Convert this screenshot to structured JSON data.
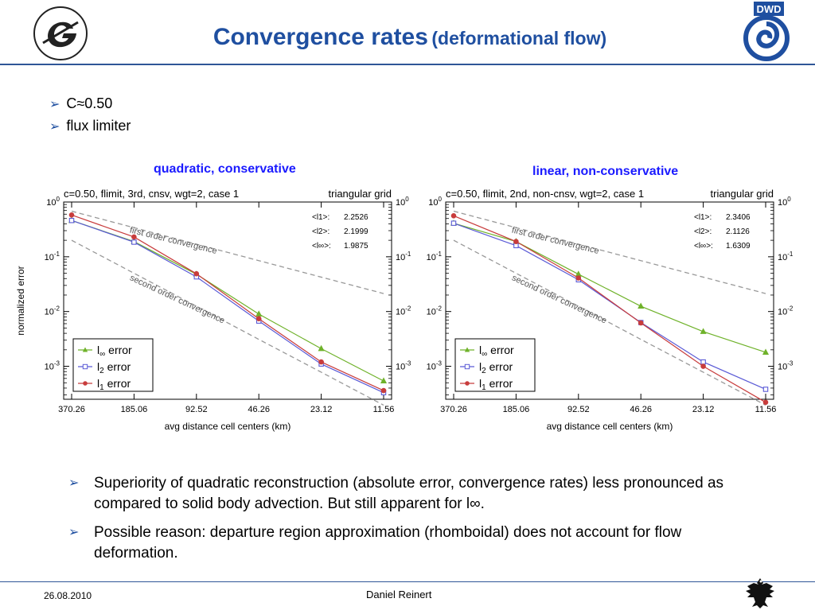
{
  "slide": {
    "title_main": "Convergence rates",
    "title_sub": "(deformational flow)",
    "bullets_top": [
      "C≈0.50",
      "flux limiter"
    ],
    "bullets_bottom": [
      "Superiority of quadratic reconstruction (absolute error, convergence rates) less pronounced as compared to solid body advection. But still apparent for l∞.",
      "Possible reason: departure region approximation (rhomboidal) does not account for flow deformation."
    ],
    "footer_date": "26.08.2010",
    "footer_author": "Daniel Reinert",
    "logo_right_text": "DWD"
  },
  "chart_data": [
    {
      "type": "line",
      "caption": "quadratic, conservative",
      "title_left": "c=0.50, flimit, 3rd, cnsv, wgt=2, case 1",
      "title_right": "triangular grid",
      "xlabel": "avg distance cell centers (km)",
      "ylabel": "normalized error",
      "x": [
        370.26,
        185.06,
        92.52,
        46.26,
        23.12,
        11.56
      ],
      "x_tick_labels": [
        "370.26",
        "185.06",
        "92.52",
        "46.26",
        "23.12",
        "11.56"
      ],
      "y_scale": "log",
      "ylim": [
        0.00025,
        1.0
      ],
      "y_tick_labels": [
        "10^0",
        "10^-1",
        "10^-2",
        "10^-3"
      ],
      "series": [
        {
          "name": "l∞ error",
          "marker": "triangle",
          "color": "#6fb22a",
          "values": [
            0.46,
            0.19,
            0.048,
            0.009,
            0.0021,
            0.00054
          ]
        },
        {
          "name": "l2 error",
          "marker": "square",
          "color": "#5a5ad6",
          "values": [
            0.46,
            0.185,
            0.043,
            0.0067,
            0.0011,
            0.00033
          ]
        },
        {
          "name": "l1 error",
          "marker": "circle",
          "color": "#c83c3c",
          "values": [
            0.58,
            0.23,
            0.049,
            0.0074,
            0.0012,
            0.00036
          ]
        }
      ],
      "reference_lines": [
        {
          "name": "first order convergence",
          "values": [
            0.68,
            0.34,
            0.17,
            0.085,
            0.0425,
            0.0213
          ]
        },
        {
          "name": "second order convergence",
          "values": [
            0.2,
            0.05,
            0.0125,
            0.0031,
            0.00078,
            0.000195
          ]
        }
      ],
      "rates": [
        {
          "label": "<l1>:",
          "value": "2.2526"
        },
        {
          "label": "<l2>:",
          "value": "2.1999"
        },
        {
          "label": "<l∞>:",
          "value": "1.9875"
        }
      ],
      "legend_position": "bottom-left",
      "grid": false
    },
    {
      "type": "line",
      "caption": "linear, non-conservative",
      "title_left": "c=0.50, flimit, 2nd, non-cnsv, wgt=2, case 1",
      "title_right": "triangular grid",
      "xlabel": "avg distance cell centers (km)",
      "ylabel": "",
      "x": [
        370.26,
        185.06,
        92.52,
        46.26,
        23.12,
        11.56
      ],
      "x_tick_labels": [
        "370.26",
        "185.06",
        "92.52",
        "46.26",
        "23.12",
        "11.56"
      ],
      "y_scale": "log",
      "ylim": [
        0.00025,
        1.0
      ],
      "y_tick_labels": [
        "10^0",
        "10^-1",
        "10^-2",
        "10^-3"
      ],
      "series": [
        {
          "name": "l∞ error",
          "marker": "triangle",
          "color": "#6fb22a",
          "values": [
            0.41,
            0.19,
            0.048,
            0.0125,
            0.0043,
            0.0018
          ]
        },
        {
          "name": "l2 error",
          "marker": "square",
          "color": "#5a5ad6",
          "values": [
            0.41,
            0.16,
            0.038,
            0.0063,
            0.0012,
            0.00038
          ]
        },
        {
          "name": "l1 error",
          "marker": "circle",
          "color": "#c83c3c",
          "values": [
            0.56,
            0.19,
            0.041,
            0.0062,
            0.001,
            0.00022
          ]
        }
      ],
      "reference_lines": [
        {
          "name": "first order convergence",
          "values": [
            0.68,
            0.34,
            0.17,
            0.085,
            0.0425,
            0.0213
          ]
        },
        {
          "name": "second order convergence",
          "values": [
            0.2,
            0.05,
            0.0125,
            0.0031,
            0.00078,
            0.000195
          ]
        }
      ],
      "rates": [
        {
          "label": "<l1>:",
          "value": "2.3406"
        },
        {
          "label": "<l2>:",
          "value": "2.1126"
        },
        {
          "label": "<l∞>:",
          "value": "1.6309"
        }
      ],
      "legend_position": "bottom-left",
      "grid": false
    }
  ]
}
